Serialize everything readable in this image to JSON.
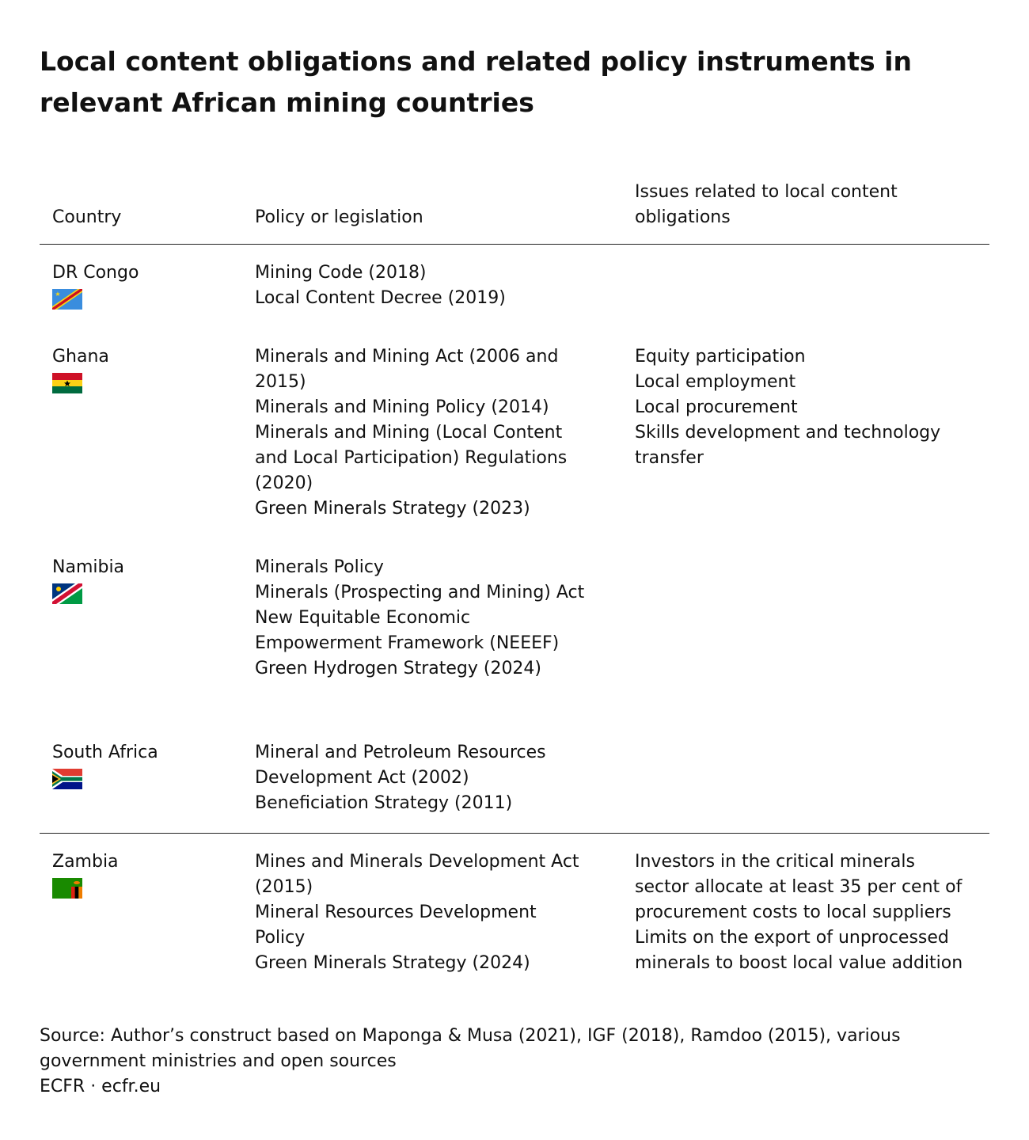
{
  "header": {
    "title": "Local content obligations and related policy instruments in relevant African mining countries"
  },
  "table": {
    "columns": [
      "Country",
      "Policy or legislation",
      "Issues related to local content obligations"
    ],
    "rows": [
      {
        "country": "DR Congo",
        "policies": [
          "Mining Code (2018)",
          "Local Content Decree (2019)"
        ],
        "issues": []
      },
      {
        "country": "Ghana",
        "policies": [
          "Minerals and Mining Act (2006 and 2015)",
          "Minerals and Mining Policy (2014)",
          "Minerals and Mining (Local Content and Local Participation) Regulations (2020)",
          "Green Minerals Strategy (2023)"
        ],
        "issues": [
          "Equity participation",
          "Local employment",
          "Local procurement",
          "Skills development and technology transfer"
        ]
      },
      {
        "country": "Namibia",
        "policies": [
          "Minerals Policy",
          "Minerals (Prospecting and Mining) Act",
          "New Equitable Economic Empowerment Framework (NEEEF)",
          "Green Hydrogen Strategy (2024)"
        ],
        "issues": []
      },
      {
        "country": "South Africa",
        "policies": [
          "Mineral and Petroleum Resources Development Act (2002)",
          "Beneficiation Strategy (2011)"
        ],
        "issues": []
      },
      {
        "country": "Zambia",
        "policies": [
          "Mines and Minerals Development Act (2015)",
          "Mineral Resources Development Policy",
          "Green Minerals Strategy (2024)"
        ],
        "issues": [
          "Investors in the critical minerals sector allocate at least 35 per cent of procurement costs to local suppliers",
          "Limits on the export of unprocessed minerals to boost local value addition"
        ]
      }
    ]
  },
  "footer": {
    "source": "Source: Author’s construct based on Maponga & Musa (2021), IGF (2018), Ramdoo (2015), various government ministries and open sources",
    "credit": "ECFR · ecfr.eu"
  }
}
